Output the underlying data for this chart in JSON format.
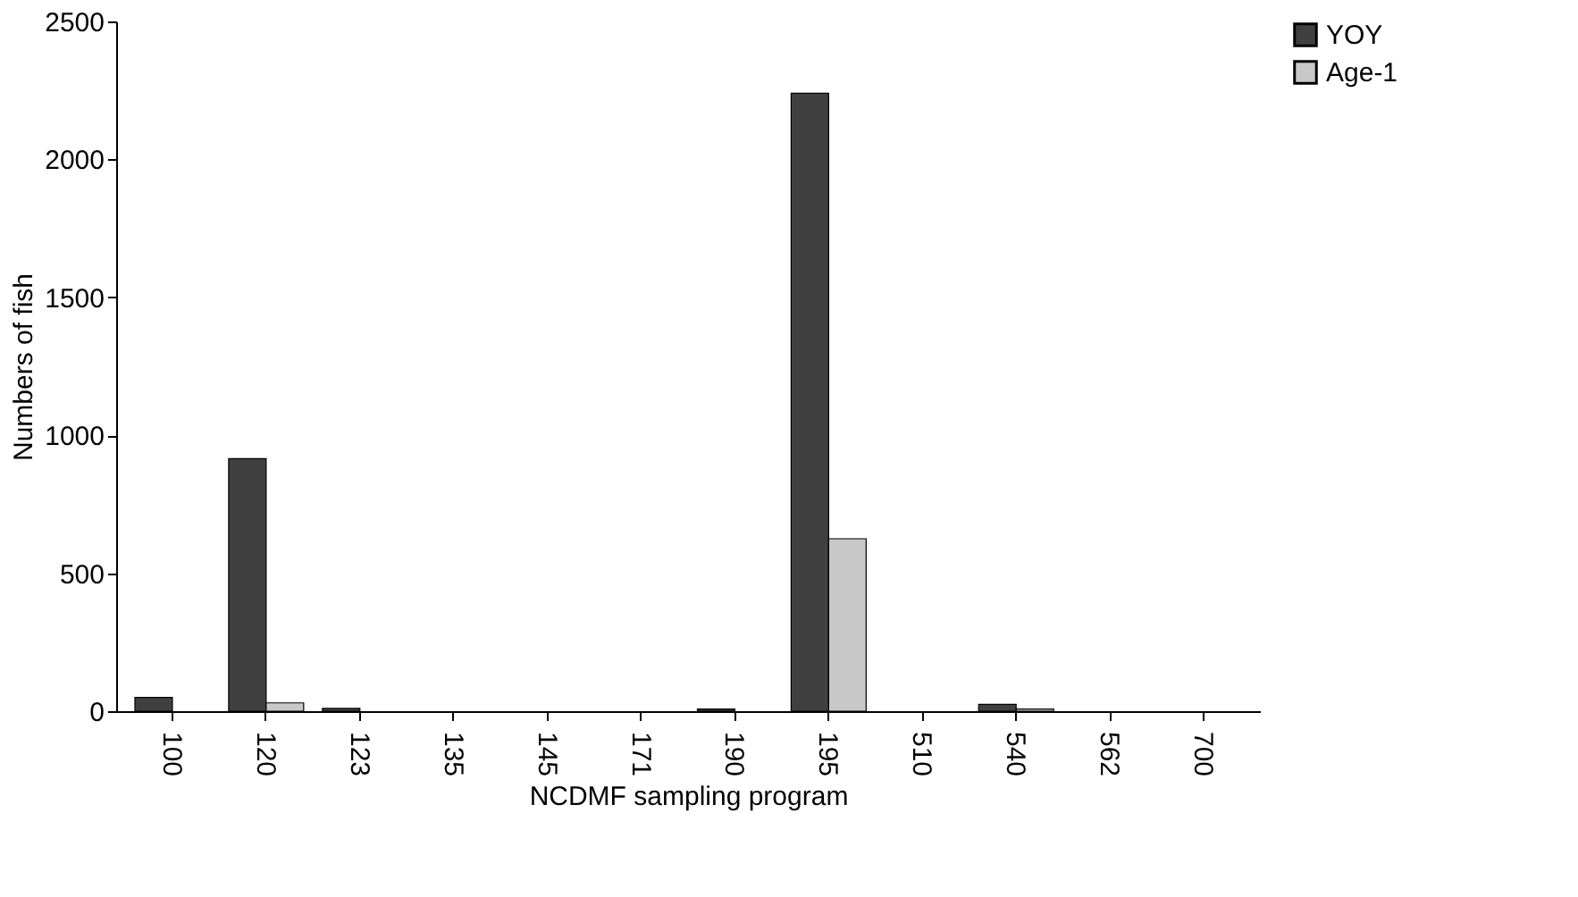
{
  "chart_data": {
    "type": "bar",
    "xlabel": "NCDMF sampling program",
    "ylabel": "Numbers of fish",
    "categories": [
      "100",
      "120",
      "123",
      "135",
      "145",
      "171",
      "190",
      "195",
      "510",
      "540",
      "562",
      "700"
    ],
    "series": [
      {
        "name": "YOY",
        "color": "#404040",
        "values": [
          50,
          915,
          10,
          0,
          0,
          0,
          8,
          2240,
          0,
          25,
          0,
          0
        ]
      },
      {
        "name": "Age-1",
        "color": "#c8c8c8",
        "values": [
          0,
          30,
          0,
          0,
          0,
          0,
          0,
          625,
          0,
          8,
          0,
          0
        ]
      }
    ],
    "ylim": [
      0,
      2500
    ],
    "yticks": [
      0,
      500,
      1000,
      1500,
      2000,
      2500
    ],
    "grid": false,
    "legend": "right"
  }
}
